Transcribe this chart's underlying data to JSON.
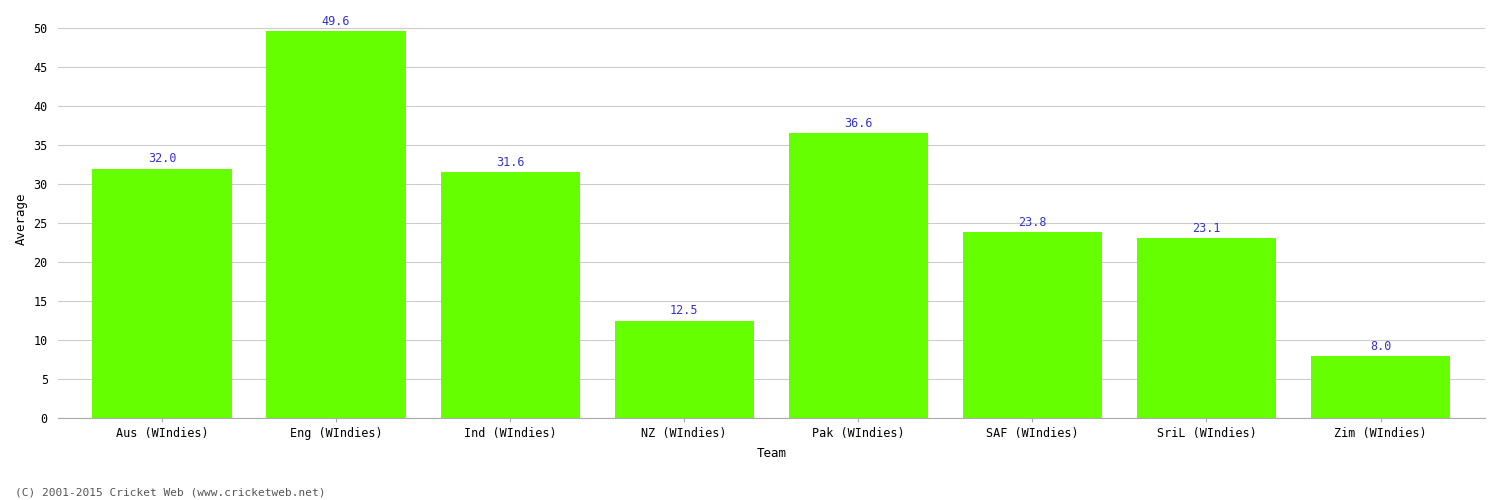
{
  "categories": [
    "Aus (WIndies)",
    "Eng (WIndies)",
    "Ind (WIndies)",
    "NZ (WIndies)",
    "Pak (WIndies)",
    "SAF (WIndies)",
    "SriL (WIndies)",
    "Zim (WIndies)"
  ],
  "values": [
    32.0,
    49.6,
    31.6,
    12.5,
    36.6,
    23.8,
    23.1,
    8.0
  ],
  "bar_color": "#66ff00",
  "label_color": "#3333cc",
  "ylabel": "Average",
  "xlabel": "Team",
  "ylim": [
    0,
    51
  ],
  "yticks": [
    0,
    5,
    10,
    15,
    20,
    25,
    30,
    35,
    40,
    45,
    50
  ],
  "footnote": "(C) 2001-2015 Cricket Web (www.cricketweb.net)",
  "footnote_color": "#555555",
  "background_color": "#ffffff",
  "grid_color": "#cccccc",
  "label_fontsize": 8.5,
  "axis_label_fontsize": 9,
  "tick_fontsize": 8.5,
  "bar_width": 0.8
}
